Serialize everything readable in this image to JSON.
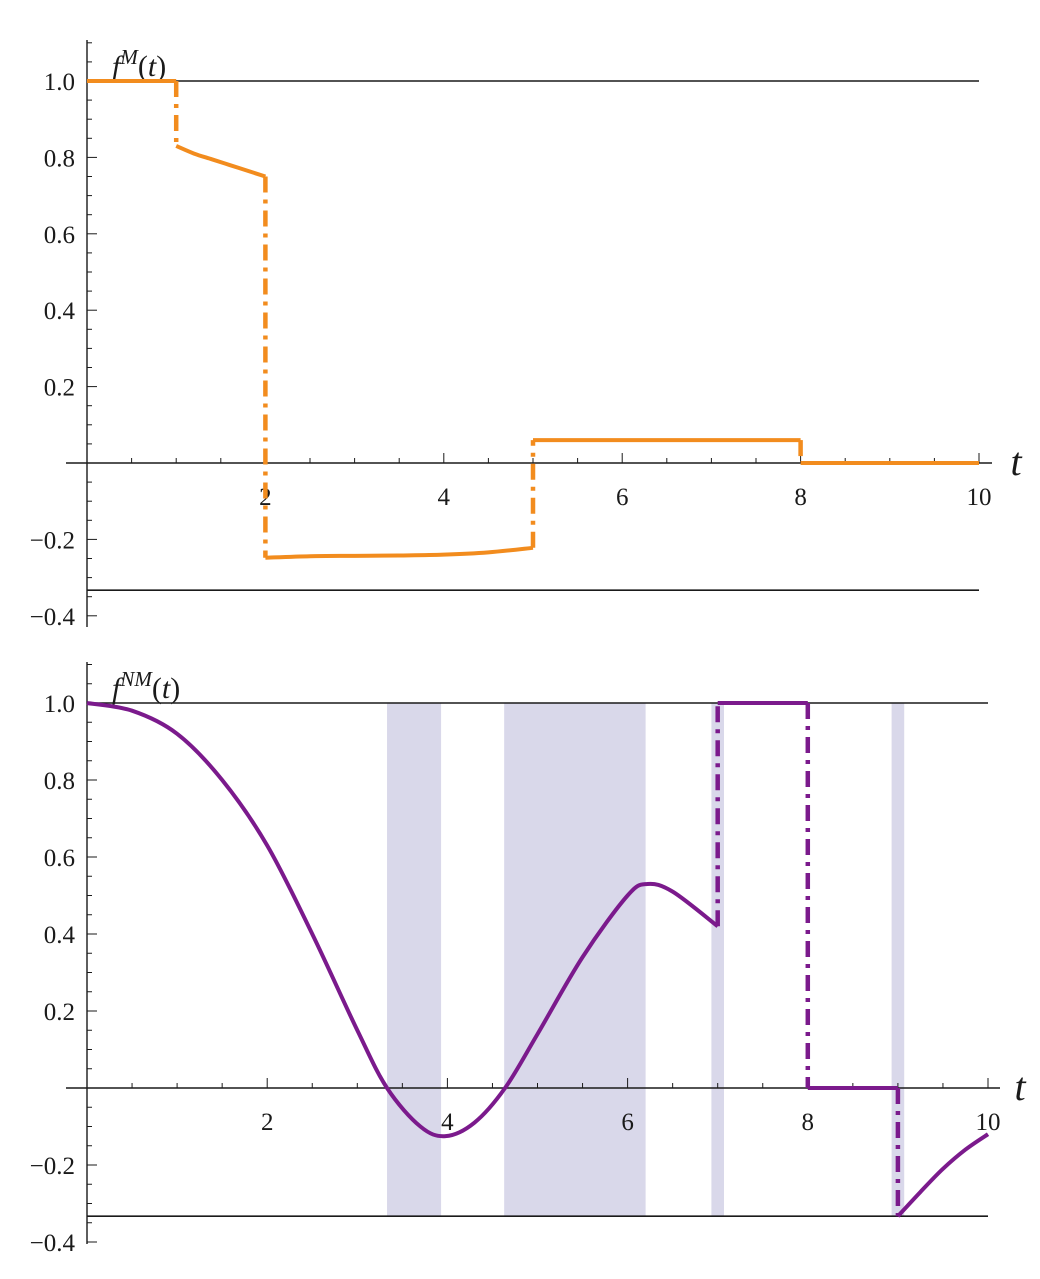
{
  "chart_data": [
    {
      "type": "line",
      "title": "",
      "ylabel": {
        "base": "f",
        "sup": "M",
        "arg": "(t)"
      },
      "xlabel": "t",
      "xlim": [
        0,
        10
      ],
      "ylim": [
        -0.4,
        1.1
      ],
      "x_ticks": [
        2,
        4,
        6,
        8,
        10
      ],
      "x_tick_labels": [
        "2",
        "4",
        "6",
        "8",
        "10"
      ],
      "y_ticks": [
        -0.4,
        -0.2,
        0.2,
        0.4,
        0.6,
        0.8,
        1.0
      ],
      "y_tick_labels": [
        "−0.4",
        "−0.2",
        "0.2",
        "0.4",
        "0.6",
        "0.8",
        "1.0"
      ],
      "reference_lines": [
        1.0,
        -0.333
      ],
      "color": "#f28c1e",
      "series": [
        {
          "x": [
            0,
            1
          ],
          "y": [
            1.0,
            1.0
          ]
        },
        {
          "x": [
            1,
            1.2,
            1.4,
            1.6,
            1.8,
            2.0
          ],
          "y": [
            0.83,
            0.81,
            0.795,
            0.78,
            0.765,
            0.75
          ]
        },
        {
          "x": [
            2,
            2.5,
            3,
            3.5,
            4,
            4.5,
            5
          ],
          "y": [
            -0.248,
            -0.244,
            -0.243,
            -0.242,
            -0.24,
            -0.234,
            -0.222
          ]
        },
        {
          "x": [
            5,
            8
          ],
          "y": [
            0.06,
            0.06
          ]
        },
        {
          "x": [
            8,
            10
          ],
          "y": [
            0.0,
            0.0
          ]
        }
      ],
      "jumps": [
        {
          "x": 1,
          "y_from": 1.0,
          "y_to": 0.83
        },
        {
          "x": 2,
          "y_from": 0.75,
          "y_to": -0.248
        },
        {
          "x": 5,
          "y_from": -0.222,
          "y_to": 0.06
        },
        {
          "x": 8,
          "y_from": 0.06,
          "y_to": 0.0
        }
      ],
      "shaded_regions": []
    },
    {
      "type": "line",
      "title": "",
      "ylabel": {
        "base": "f",
        "sup": "NM",
        "arg": "(t)"
      },
      "xlabel": "t",
      "xlim": [
        0,
        10
      ],
      "ylim": [
        -0.4,
        1.1
      ],
      "x_ticks": [
        2,
        4,
        6,
        8,
        10
      ],
      "x_tick_labels": [
        "2",
        "4",
        "6",
        "8",
        "10"
      ],
      "y_ticks": [
        -0.4,
        -0.2,
        0.2,
        0.4,
        0.6,
        0.8,
        1.0
      ],
      "y_tick_labels": [
        "−0.4",
        "−0.2",
        "0.2",
        "0.4",
        "0.6",
        "0.8",
        "1.0"
      ],
      "reference_lines": [
        1.0,
        -0.333
      ],
      "color": "#7b1a8c",
      "shade_color": "#d9d8ea",
      "series": [
        {
          "x": [
            0,
            0.5,
            1,
            1.5,
            2,
            2.5,
            3,
            3.33,
            3.7,
            3.98,
            4.3,
            4.64,
            5,
            5.5,
            6,
            6.22,
            6.5,
            7
          ],
          "y": [
            1.0,
            0.98,
            0.92,
            0.8,
            0.63,
            0.4,
            0.15,
            0.0,
            -0.1,
            -0.125,
            -0.09,
            0.0,
            0.14,
            0.34,
            0.5,
            0.53,
            0.51,
            0.42
          ]
        },
        {
          "x": [
            7,
            8
          ],
          "y": [
            1.0,
            1.0
          ]
        },
        {
          "x": [
            8,
            9
          ],
          "y": [
            0.0,
            0.0
          ]
        },
        {
          "x": [
            9,
            9.25,
            9.5,
            9.75,
            10
          ],
          "y": [
            -0.333,
            -0.27,
            -0.21,
            -0.16,
            -0.12
          ]
        }
      ],
      "jumps": [
        {
          "x": 7,
          "y_from": 0.42,
          "y_to": 1.0
        },
        {
          "x": 8,
          "y_from": 1.0,
          "y_to": 0.0
        },
        {
          "x": 9,
          "y_from": 0.0,
          "y_to": -0.333
        }
      ],
      "shaded_regions": [
        [
          3.33,
          3.93
        ],
        [
          4.63,
          6.2
        ],
        [
          6.93,
          7.07
        ],
        [
          8.93,
          9.07
        ]
      ]
    }
  ]
}
